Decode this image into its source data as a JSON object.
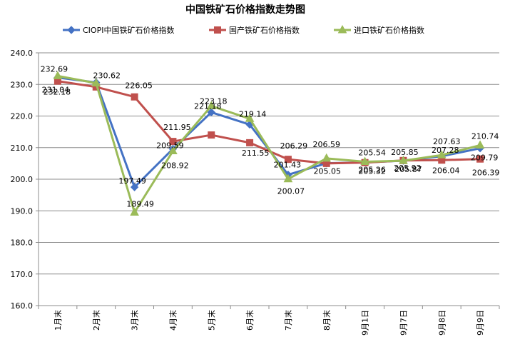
{
  "chart_data": {
    "type": "line",
    "title": "中国铁矿石价格指数走势图",
    "xlabel": "",
    "ylabel": "",
    "categories": [
      "1月末",
      "2月末",
      "3月末",
      "4月末",
      "5月末",
      "6月末",
      "7月末",
      "8月末",
      "9月1日",
      "9月7日",
      "9月8日",
      "9月9日"
    ],
    "ylim": [
      160,
      240
    ],
    "yticks": [
      "160.0",
      "170.0",
      "180.0",
      "190.0",
      "200.0",
      "210.0",
      "220.0",
      "230.0",
      "240.0"
    ],
    "grid": true,
    "legend": "top",
    "series": [
      {
        "name": "CIOPI中国铁矿石价格指数",
        "color": "#4472C4",
        "marker": "diamond",
        "values": [
          232.18,
          230.62,
          197.49,
          209.59,
          221.18,
          217.3,
          201.43,
          205.05,
          205.32,
          205.87,
          207.28,
          209.79
        ],
        "labels": [
          "232.18",
          "230.62",
          "197.49",
          "209.59",
          "221.18",
          "",
          "201.43",
          "205.05",
          "205.32",
          "205.87",
          "207.28",
          "209.79"
        ]
      },
      {
        "name": "国产铁矿石价格指数",
        "color": "#C0504D",
        "marker": "square",
        "values": [
          231.04,
          229.2,
          226.05,
          211.95,
          214.0,
          211.55,
          206.29,
          205.0,
          205.26,
          205.92,
          206.04,
          206.39
        ],
        "labels": [
          "231.04",
          "",
          "226.05",
          "211.95",
          "",
          "211.55",
          "206.29",
          "",
          "205.26",
          "205.92",
          "206.04",
          "206.39"
        ]
      },
      {
        "name": "进口铁矿石价格指数",
        "color": "#9BBB59",
        "marker": "triangle",
        "values": [
          232.69,
          230.4,
          189.49,
          208.92,
          223.18,
          219.14,
          200.07,
          206.59,
          205.54,
          205.85,
          207.63,
          210.74
        ],
        "labels": [
          "232.69",
          "",
          "189.49",
          "208.92",
          "223.18",
          "219.14",
          "200.07",
          "206.59",
          "205.54",
          "205.85",
          "207.63",
          "210.74"
        ]
      }
    ]
  }
}
